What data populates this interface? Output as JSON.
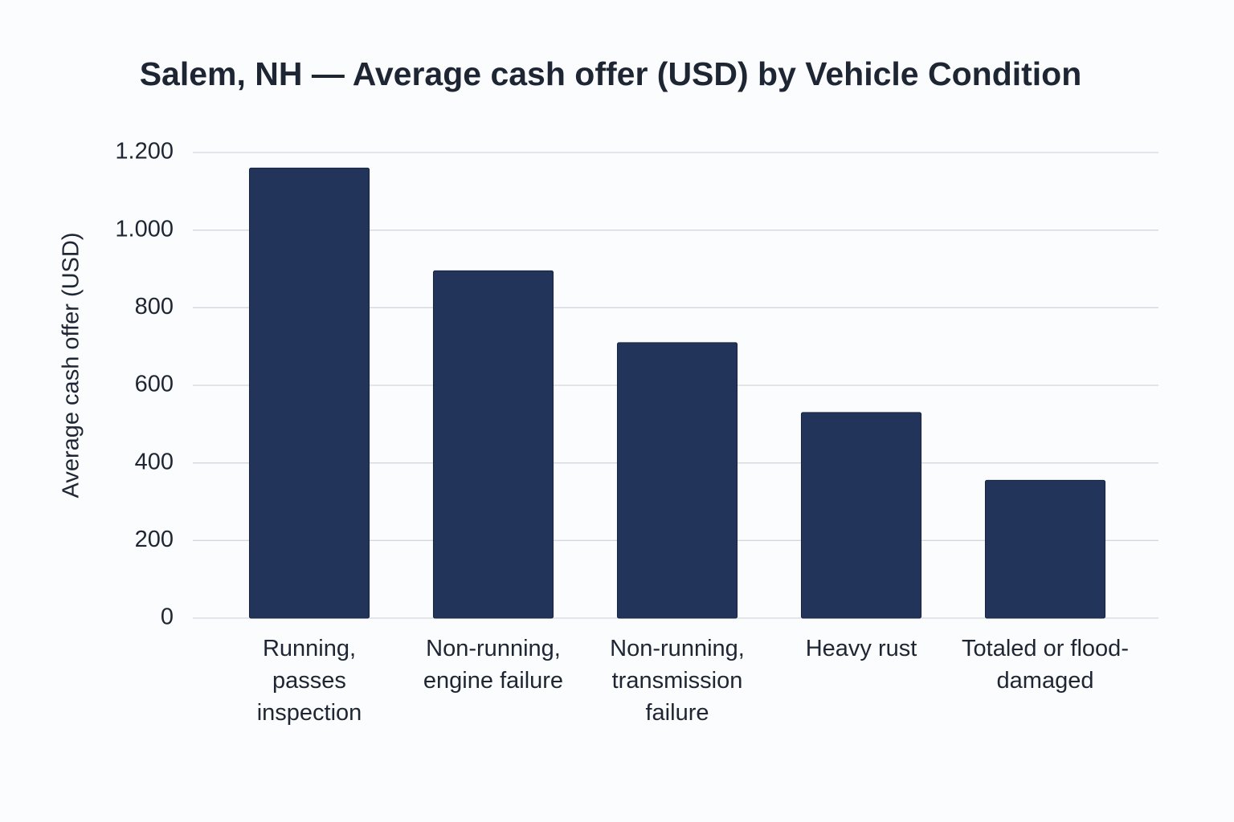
{
  "chart_data": {
    "type": "bar",
    "title": "Salem, NH — Average cash offer (USD) by Vehicle Condition",
    "y_label": "Average cash offer (USD)",
    "categories": [
      "Running, passes inspection",
      "Non-running, engine failure",
      "Non-running, transmission failure",
      "Heavy rust",
      "Totaled or flood-damaged"
    ],
    "values": [
      1160,
      895,
      710,
      530,
      355
    ],
    "color": "#22345a",
    "ylim": [
      0,
      1200
    ],
    "yticks": [
      0,
      200,
      400,
      600,
      800,
      {
        "value": 1000,
        "label": "1.000"
      },
      {
        "value": 1200,
        "label": "1.200"
      }
    ],
    "grid": true
  }
}
